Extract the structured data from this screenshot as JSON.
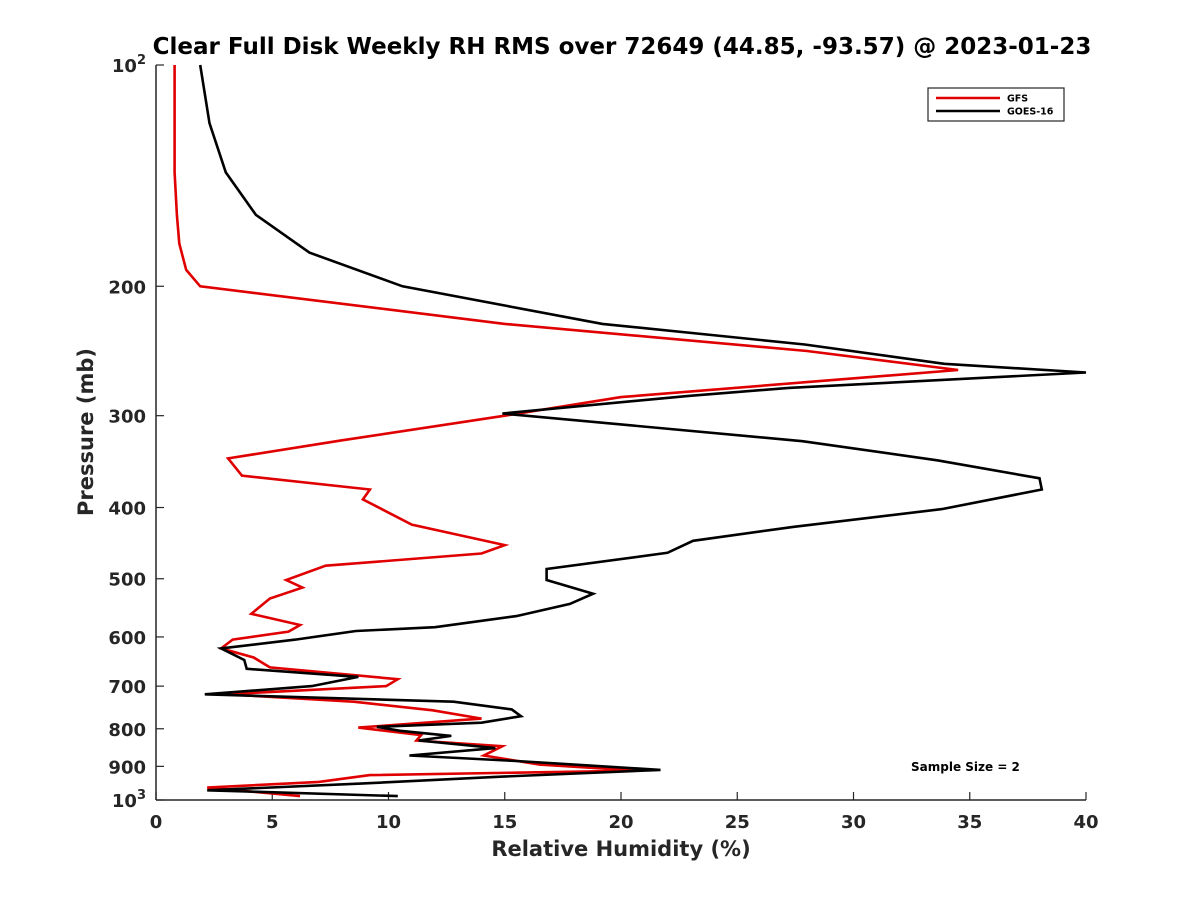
{
  "chart_data": {
    "type": "line",
    "title": "Clear Full Disk Weekly RH RMS over 72649 (44.85, -93.57) @ 2023-01-23",
    "xlabel": "Relative Humidity (%)",
    "ylabel": "Pressure (mb)",
    "xlim": [
      0,
      40
    ],
    "ylim": [
      100,
      1000
    ],
    "y_scale": "log",
    "y_reversed": true,
    "grid": false,
    "legend_position": "top-right",
    "x_ticks": [
      "0",
      "5",
      "10",
      "15",
      "20",
      "25",
      "30",
      "35",
      "40"
    ],
    "y_ticks": [
      {
        "value": 100,
        "base": "10",
        "exp": "2"
      },
      {
        "value": 200,
        "label": "200"
      },
      {
        "value": 300,
        "label": "300"
      },
      {
        "value": 400,
        "label": "400"
      },
      {
        "value": 500,
        "label": "500"
      },
      {
        "value": 600,
        "label": "600"
      },
      {
        "value": 700,
        "label": "700"
      },
      {
        "value": 800,
        "label": "800"
      },
      {
        "value": 900,
        "label": "900"
      },
      {
        "value": 1000,
        "base": "10",
        "exp": "3"
      }
    ],
    "series": [
      {
        "name": "GFS",
        "color": "#e00000",
        "points": [
          [
            0.8,
            100
          ],
          [
            0.8,
            120
          ],
          [
            0.8,
            140
          ],
          [
            0.9,
            160
          ],
          [
            1.0,
            175
          ],
          [
            1.3,
            190
          ],
          [
            1.9,
            200
          ],
          [
            15.0,
            225
          ],
          [
            28.0,
            245
          ],
          [
            34.5,
            260
          ],
          [
            28.0,
            270
          ],
          [
            20.0,
            283
          ],
          [
            15.0,
            300
          ],
          [
            8.0,
            324
          ],
          [
            3.1,
            343
          ],
          [
            3.7,
            362
          ],
          [
            9.2,
            378
          ],
          [
            8.9,
            390
          ],
          [
            11.0,
            422
          ],
          [
            15.0,
            450
          ],
          [
            14.0,
            462
          ],
          [
            7.3,
            480
          ],
          [
            5.6,
            502
          ],
          [
            6.3,
            514
          ],
          [
            4.9,
            532
          ],
          [
            4.1,
            558
          ],
          [
            6.2,
            578
          ],
          [
            5.7,
            590
          ],
          [
            3.3,
            605
          ],
          [
            2.8,
            622
          ],
          [
            4.2,
            640
          ],
          [
            4.9,
            660
          ],
          [
            10.4,
            685
          ],
          [
            9.9,
            700
          ],
          [
            3.0,
            718
          ],
          [
            8.5,
            735
          ],
          [
            11.9,
            755
          ],
          [
            14.0,
            775
          ],
          [
            8.7,
            797
          ],
          [
            11.4,
            816
          ],
          [
            11.2,
            830
          ],
          [
            14.9,
            845
          ],
          [
            14.1,
            870
          ],
          [
            16.5,
            895
          ],
          [
            20.7,
            912
          ],
          [
            9.2,
            925
          ],
          [
            7.0,
            945
          ],
          [
            2.2,
            962
          ],
          [
            6.2,
            988
          ]
        ]
      },
      {
        "name": "GOES-16",
        "color": "#000000",
        "points": [
          [
            1.9,
            100
          ],
          [
            2.3,
            120
          ],
          [
            3.0,
            140
          ],
          [
            4.3,
            160
          ],
          [
            6.6,
            180
          ],
          [
            10.6,
            200
          ],
          [
            19.2,
            225
          ],
          [
            27.9,
            240
          ],
          [
            33.9,
            255
          ],
          [
            40.0,
            262
          ],
          [
            27.2,
            275
          ],
          [
            22.9,
            282
          ],
          [
            14.9,
            298
          ],
          [
            27.8,
            325
          ],
          [
            33.6,
            345
          ],
          [
            38.0,
            365
          ],
          [
            38.1,
            378
          ],
          [
            33.8,
            402
          ],
          [
            27.4,
            425
          ],
          [
            23.1,
            444
          ],
          [
            22.0,
            461
          ],
          [
            16.8,
            485
          ],
          [
            16.8,
            502
          ],
          [
            18.8,
            524
          ],
          [
            17.8,
            541
          ],
          [
            15.5,
            562
          ],
          [
            12.0,
            582
          ],
          [
            8.6,
            589
          ],
          [
            6.0,
            605
          ],
          [
            2.8,
            622
          ],
          [
            3.8,
            645
          ],
          [
            3.9,
            663
          ],
          [
            8.7,
            680
          ],
          [
            6.7,
            700
          ],
          [
            2.1,
            718
          ],
          [
            12.8,
            735
          ],
          [
            15.3,
            753
          ],
          [
            15.7,
            769
          ],
          [
            14.0,
            785
          ],
          [
            9.5,
            795
          ],
          [
            10.5,
            805
          ],
          [
            12.7,
            818
          ],
          [
            11.3,
            830
          ],
          [
            14.6,
            850
          ],
          [
            10.9,
            870
          ],
          [
            15.5,
            885
          ],
          [
            18.5,
            897
          ],
          [
            21.7,
            910
          ],
          [
            14.7,
            930
          ],
          [
            8.8,
            950
          ],
          [
            2.2,
            970
          ],
          [
            10.4,
            988
          ]
        ]
      }
    ],
    "annotation": "Sample Size = 2"
  },
  "legend": {
    "entries": [
      {
        "label": "GFS",
        "color": "#e00000"
      },
      {
        "label": "GOES-16",
        "color": "#000000"
      }
    ]
  }
}
